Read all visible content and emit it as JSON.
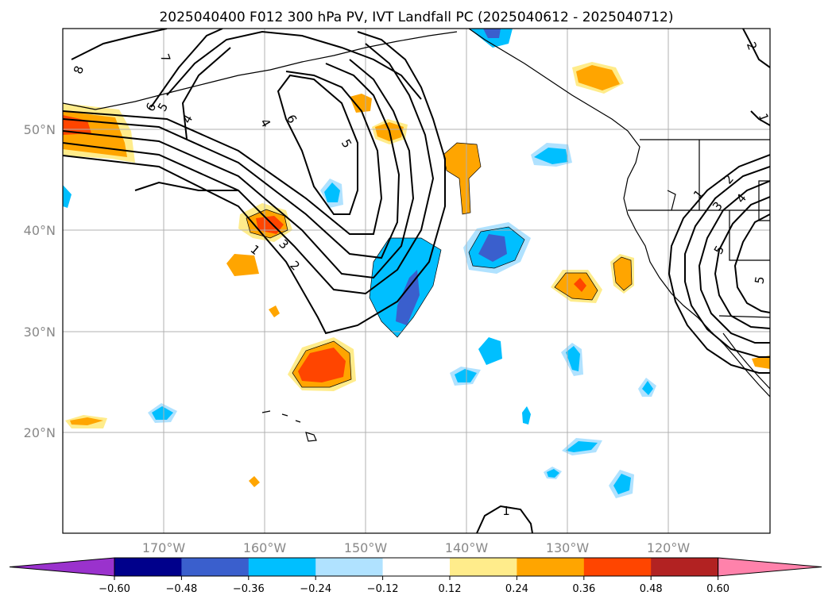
{
  "title": "2025040400 F012 300 hPa PV, IVT Landfall PC (2025040612 - 2025040712)",
  "map": {
    "lat_labels": [
      "50°N",
      "40°N",
      "30°N",
      "20°N"
    ],
    "lon_labels": [
      "170°W",
      "160°W",
      "150°W",
      "140°W",
      "130°W",
      "120°W"
    ],
    "contour_labels": [
      "8",
      "7",
      "6",
      "5",
      "4",
      "1",
      "4",
      "6",
      "5",
      "3",
      "2",
      "1",
      "1",
      "2",
      "3",
      "4",
      "5",
      "5",
      "2",
      "1"
    ]
  },
  "colorbar": {
    "ticks": [
      "−0.60",
      "−0.48",
      "−0.36",
      "−0.24",
      "−0.12",
      "0.12",
      "0.24",
      "0.36",
      "0.48",
      "0.60"
    ],
    "colors": [
      "#9a32cd",
      "#00008b",
      "#3a5fcd",
      "#00bfff",
      "#b0e2ff",
      "#ffffff",
      "#ffec8b",
      "#ffa500",
      "#ff4500",
      "#b22222",
      "#ff82ab"
    ]
  }
}
